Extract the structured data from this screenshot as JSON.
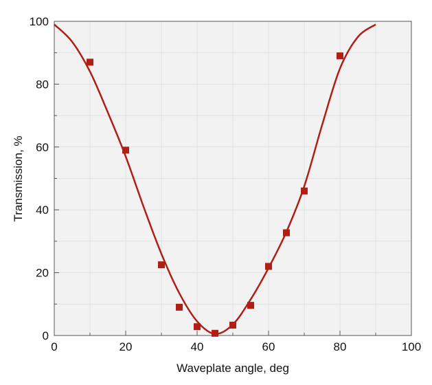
{
  "chart_data": {
    "type": "scatter",
    "xlabel": "Waveplate angle, deg",
    "ylabel": "Transmission, %",
    "xlim": [
      0,
      100
    ],
    "ylim": [
      0,
      100
    ],
    "x_ticks": [
      "0",
      "20",
      "40",
      "60",
      "80",
      "100"
    ],
    "y_ticks": [
      "0",
      "20",
      "40",
      "60",
      "80",
      "100"
    ],
    "grid": true,
    "legend": "none",
    "colors": {
      "series": "#b01e14",
      "plot_background": "#f2f2f2",
      "grid": "#e0e0e0",
      "axis": "#555555"
    },
    "series": [
      {
        "kind": "markers",
        "marker": "square",
        "x": [
          10,
          20,
          30,
          35,
          40,
          45,
          50,
          55,
          60,
          65,
          70,
          80
        ],
        "y": [
          87,
          59,
          22.5,
          9,
          2.8,
          0.7,
          3.3,
          9.6,
          22,
          32.7,
          46,
          89
        ]
      },
      {
        "kind": "fit-line",
        "x": [
          0,
          5,
          10,
          15,
          20,
          25,
          30,
          35,
          40,
          45,
          50,
          55,
          60,
          65,
          70,
          75,
          80,
          85,
          90
        ],
        "y": [
          99,
          93.5,
          84,
          71,
          57,
          41,
          26,
          13.5,
          4.5,
          0.5,
          3.5,
          11.5,
          21.5,
          33,
          47.5,
          67,
          85,
          95,
          99
        ]
      }
    ]
  }
}
